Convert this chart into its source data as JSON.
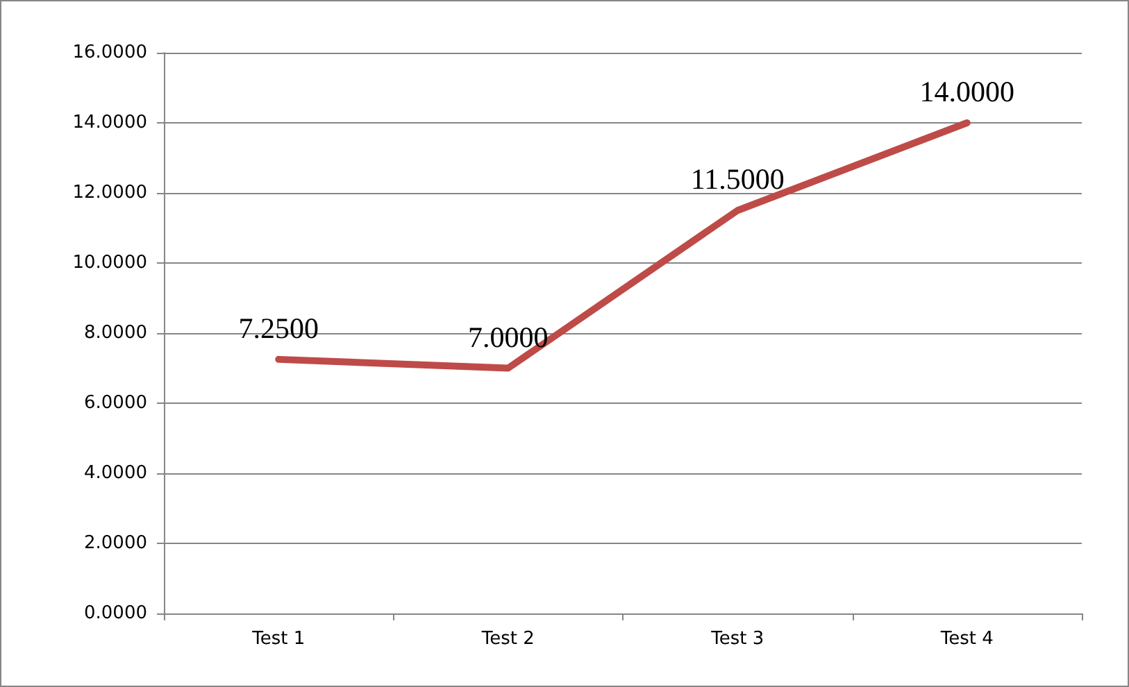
{
  "chart_data": {
    "type": "line",
    "categories": [
      "Test 1",
      "Test 2",
      "Test 3",
      "Test 4"
    ],
    "series": [
      {
        "color": "#be4b48",
        "values": [
          7.25,
          7.0,
          11.5,
          14.0
        ],
        "value_labels": [
          "7.2500",
          "7.0000",
          "11.5000",
          "14.0000"
        ]
      }
    ],
    "ylim": [
      0,
      16
    ],
    "yticks": [
      {
        "value": 0,
        "label": "0.0000"
      },
      {
        "value": 2,
        "label": "2.0000"
      },
      {
        "value": 4,
        "label": "4.0000"
      },
      {
        "value": 6,
        "label": "6.0000"
      },
      {
        "value": 8,
        "label": "8.0000"
      },
      {
        "value": 10,
        "label": "10.0000"
      },
      {
        "value": 12,
        "label": "12.0000"
      },
      {
        "value": 14,
        "label": "14.0000"
      },
      {
        "value": 16,
        "label": "16.0000"
      }
    ],
    "grid": "y",
    "marker": "none",
    "line_style": "solid"
  }
}
